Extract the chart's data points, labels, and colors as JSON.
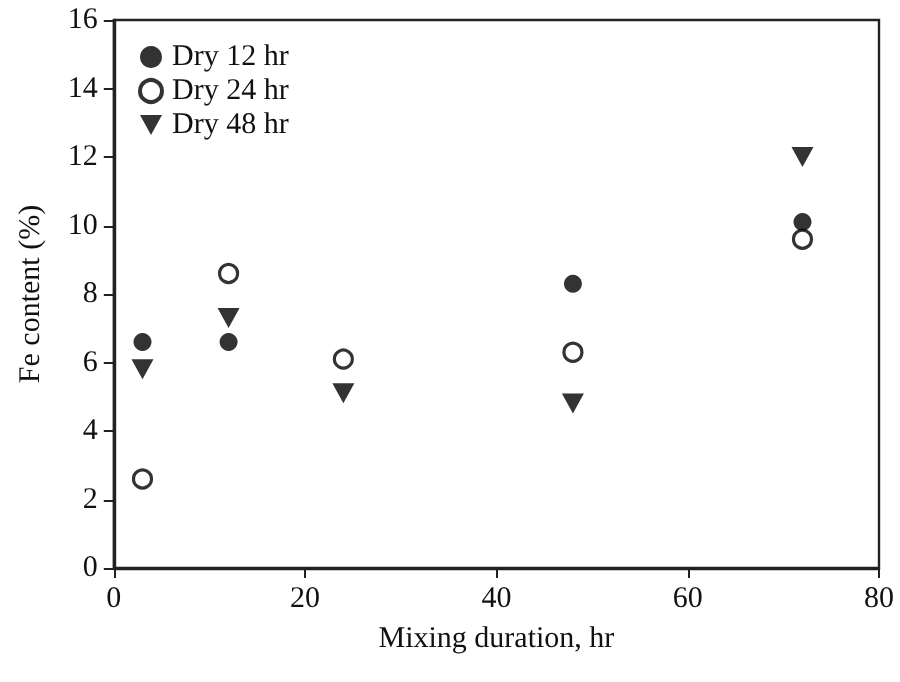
{
  "chart_data": {
    "type": "scatter",
    "xlabel": "Mixing duration, hr",
    "ylabel": "Fe content (%)",
    "xlim": [
      0,
      80
    ],
    "xticks": [
      0,
      20,
      40,
      60,
      80
    ],
    "ylim": [
      0,
      16
    ],
    "yticks": [
      0,
      2,
      4,
      6,
      8,
      10,
      12,
      14,
      16
    ],
    "grid": false,
    "legend": "top left",
    "series": [
      {
        "name": "Dry 12 hr",
        "color": "#000000",
        "marker": "circle",
        "x": [
          3,
          12,
          48,
          72
        ],
        "values": [
          6.6,
          6.6,
          8.3,
          10.1
        ]
      },
      {
        "name": "Dry 24 hr",
        "color": "#000000",
        "marker": "open circle",
        "x": [
          3,
          12,
          24,
          48,
          72
        ],
        "values": [
          2.6,
          8.6,
          6.1,
          6.3,
          9.6
        ]
      },
      {
        "name": "Dry 48 hr",
        "color": "#000000",
        "marker": "triangle",
        "x": [
          3,
          12,
          24,
          48,
          72
        ],
        "values": [
          5.8,
          7.3,
          5.1,
          4.8,
          12.0
        ]
      }
    ]
  }
}
